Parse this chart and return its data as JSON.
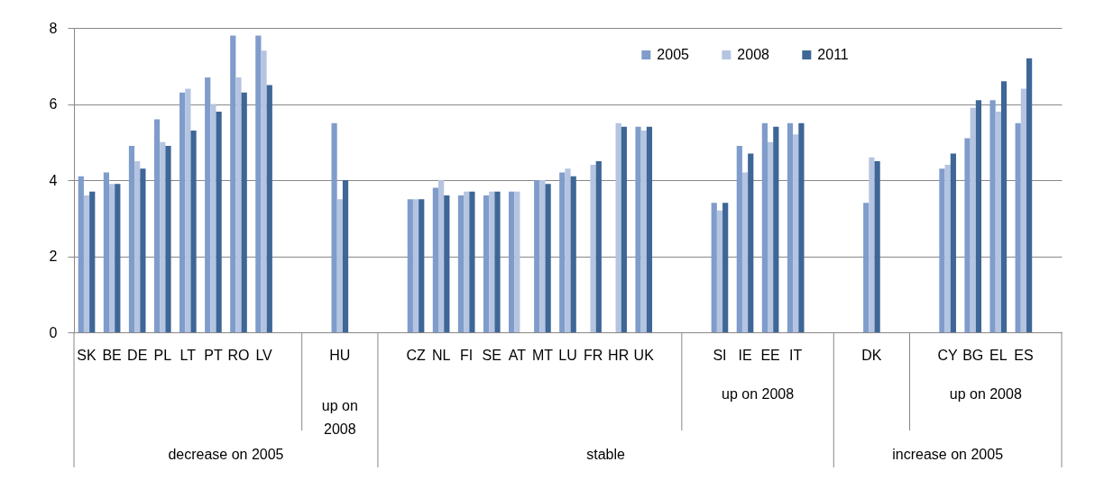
{
  "chart_data": {
    "type": "bar",
    "categories": [
      "SK",
      "BE",
      "DE",
      "PL",
      "LT",
      "PT",
      "RO",
      "LV",
      null,
      null,
      "HU",
      null,
      null,
      "CZ",
      "NL",
      "FI",
      "SE",
      "AT",
      "MT",
      "LU",
      "FR",
      "HR",
      "UK",
      null,
      null,
      "SI",
      "IE",
      "EE",
      "IT",
      null,
      null,
      "DK",
      null,
      null,
      "CY",
      "BG",
      "EL",
      "ES",
      null
    ],
    "series": [
      {
        "name": "2005",
        "color": "#7f9ccb",
        "values": [
          4.1,
          4.2,
          4.9,
          5.6,
          6.3,
          6.7,
          7.8,
          7.8,
          null,
          null,
          5.5,
          null,
          null,
          3.5,
          3.8,
          3.6,
          3.6,
          3.7,
          4.0,
          4.2,
          null,
          null,
          5.4,
          null,
          null,
          3.4,
          4.9,
          5.5,
          5.5,
          null,
          null,
          3.4,
          null,
          null,
          4.3,
          5.1,
          6.1,
          5.5,
          null
        ]
      },
      {
        "name": "2008",
        "color": "#b4c4e1",
        "values": [
          3.6,
          3.9,
          4.5,
          5.0,
          6.4,
          6.0,
          6.7,
          7.4,
          null,
          null,
          3.5,
          null,
          null,
          3.5,
          4.0,
          3.7,
          3.7,
          3.7,
          4.0,
          4.3,
          4.4,
          5.5,
          5.3,
          null,
          null,
          3.2,
          4.2,
          5.0,
          5.2,
          null,
          null,
          4.6,
          null,
          null,
          4.4,
          5.9,
          5.8,
          6.4,
          null
        ]
      },
      {
        "name": "2011",
        "color": "#3e6697",
        "values": [
          3.7,
          3.9,
          4.3,
          4.9,
          5.3,
          5.8,
          6.3,
          6.5,
          null,
          null,
          4.0,
          null,
          null,
          3.5,
          3.6,
          3.7,
          3.7,
          null,
          3.9,
          4.1,
          4.5,
          5.4,
          5.4,
          null,
          null,
          3.4,
          4.7,
          5.4,
          5.5,
          null,
          null,
          4.5,
          null,
          null,
          4.7,
          6.1,
          6.6,
          7.2,
          null
        ]
      }
    ],
    "ylim": [
      0,
      8
    ],
    "yticks": [
      0,
      2,
      4,
      6,
      8
    ],
    "grid": "y",
    "legend": "top right",
    "annotations": [
      "up on 2008",
      "up on 2008",
      "up on 2008",
      "decrease on 2005",
      "stable",
      "increase on 2005"
    ]
  }
}
